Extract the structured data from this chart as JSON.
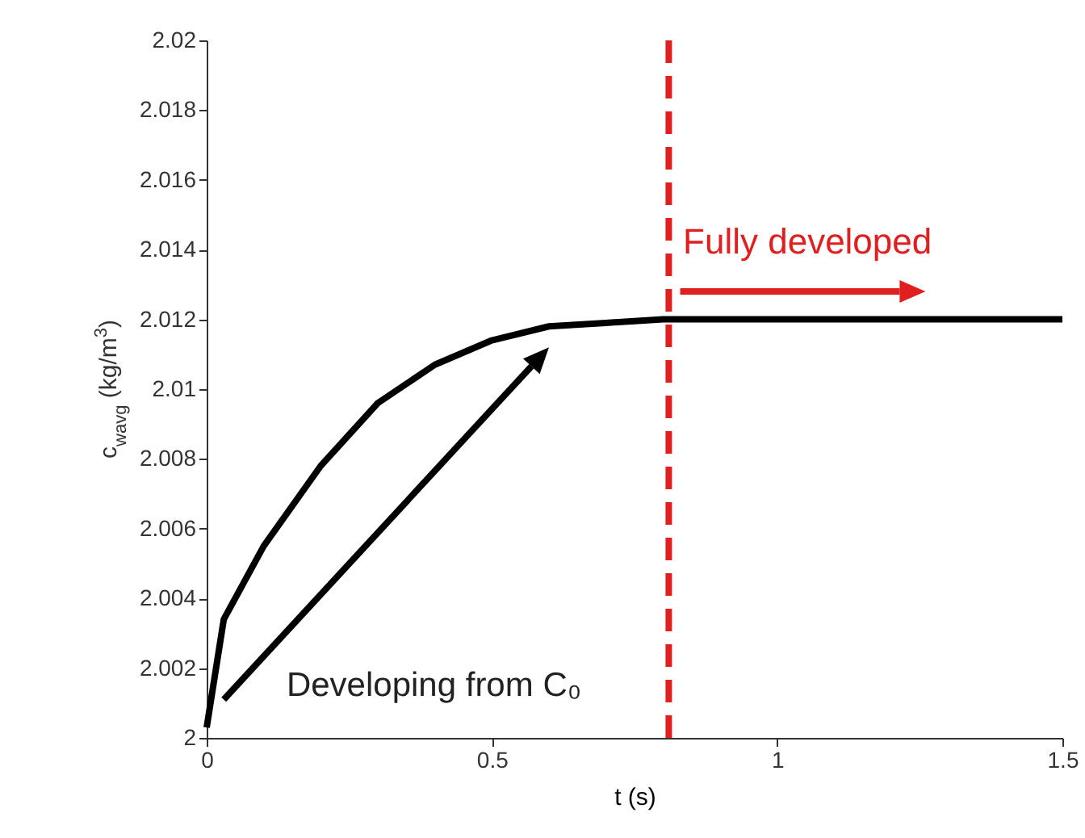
{
  "chart_data": {
    "type": "line",
    "xlabel": "t (s)",
    "ylabel": "c$_{wavg}$ (kg/m$^{3}$)",
    "x": [
      0,
      0.03,
      0.1,
      0.2,
      0.3,
      0.4,
      0.5,
      0.6,
      0.7,
      0.8,
      1.0,
      1.25,
      1.5
    ],
    "series": [
      {
        "color": "#000000",
        "values": [
          2.0003,
          2.0034,
          2.0055,
          2.0078,
          2.0096,
          2.0107,
          2.0114,
          2.0118,
          2.0119,
          2.012,
          2.012,
          2.012,
          2.012
        ]
      }
    ],
    "xlim": [
      0,
      1.5
    ],
    "xticks": [
      0,
      0.5,
      1,
      1.5
    ],
    "ylim": [
      2,
      2.02
    ],
    "yticks": [
      2,
      2.002,
      2.004,
      2.006,
      2.008,
      2.01,
      2.012,
      2.014,
      2.016,
      2.018,
      2.02
    ],
    "ref_lines": [
      {
        "axis": "x",
        "value": 0.81,
        "color": "#e02020",
        "line_style": "dashed"
      }
    ],
    "annotations": [
      "Fully developed",
      "Developing from C₀"
    ],
    "grid": false,
    "marker": "none",
    "line_style": "solid"
  }
}
